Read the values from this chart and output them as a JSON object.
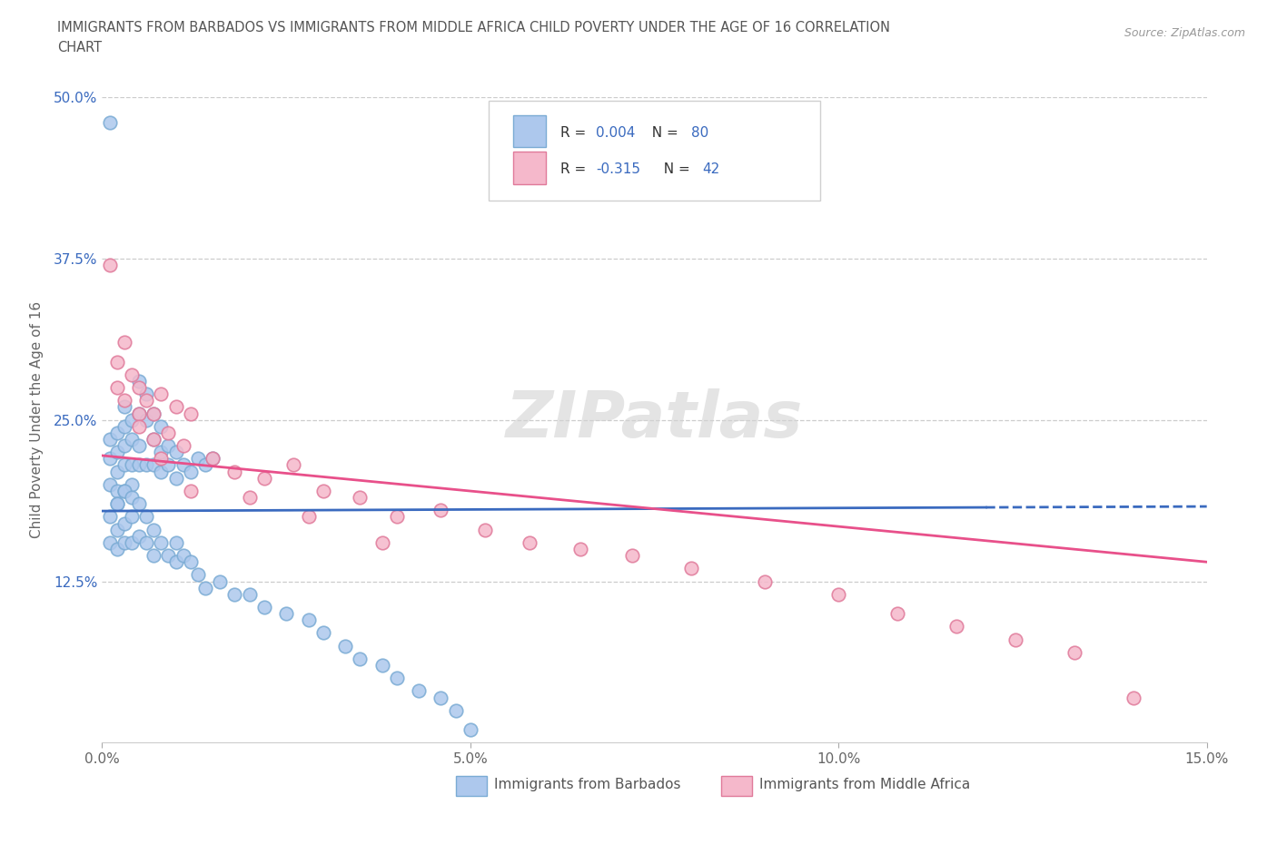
{
  "title_line1": "IMMIGRANTS FROM BARBADOS VS IMMIGRANTS FROM MIDDLE AFRICA CHILD POVERTY UNDER THE AGE OF 16 CORRELATION",
  "title_line2": "CHART",
  "source": "Source: ZipAtlas.com",
  "ylabel": "Child Poverty Under the Age of 16",
  "xlim": [
    0.0,
    0.15
  ],
  "ylim": [
    0.0,
    0.5
  ],
  "xticks": [
    0.0,
    0.05,
    0.1,
    0.15
  ],
  "xticklabels": [
    "0.0%",
    "5.0%",
    "10.0%",
    "15.0%"
  ],
  "yticks": [
    0.0,
    0.125,
    0.25,
    0.375,
    0.5
  ],
  "yticklabels": [
    "",
    "12.5%",
    "25.0%",
    "37.5%",
    "50.0%"
  ],
  "barbados_color": "#adc8ed",
  "barbados_edge": "#7aabd4",
  "middle_africa_color": "#f5b8cb",
  "middle_africa_edge": "#e07a9a",
  "trend_barbados_color": "#3a6abf",
  "trend_middle_africa_color": "#e8508a",
  "R_barbados": 0.004,
  "N_barbados": 80,
  "R_middle_africa": -0.315,
  "N_middle_africa": 42,
  "watermark": "ZIPatlas",
  "legend_label_barbados": "Immigrants from Barbados",
  "legend_label_middle": "Immigrants from Middle Africa",
  "barbados_x": [
    0.001,
    0.001,
    0.001,
    0.001,
    0.002,
    0.002,
    0.002,
    0.002,
    0.002,
    0.003,
    0.003,
    0.003,
    0.003,
    0.003,
    0.004,
    0.004,
    0.004,
    0.004,
    0.005,
    0.005,
    0.005,
    0.005,
    0.006,
    0.006,
    0.006,
    0.007,
    0.007,
    0.007,
    0.008,
    0.008,
    0.008,
    0.009,
    0.009,
    0.01,
    0.01,
    0.011,
    0.012,
    0.013,
    0.014,
    0.015,
    0.001,
    0.001,
    0.002,
    0.002,
    0.002,
    0.003,
    0.003,
    0.003,
    0.004,
    0.004,
    0.004,
    0.005,
    0.005,
    0.006,
    0.006,
    0.007,
    0.007,
    0.008,
    0.009,
    0.01,
    0.01,
    0.011,
    0.012,
    0.013,
    0.014,
    0.016,
    0.018,
    0.02,
    0.022,
    0.025,
    0.028,
    0.03,
    0.033,
    0.035,
    0.038,
    0.04,
    0.043,
    0.046,
    0.048,
    0.05
  ],
  "barbados_y": [
    0.48,
    0.235,
    0.22,
    0.2,
    0.24,
    0.225,
    0.21,
    0.195,
    0.185,
    0.26,
    0.245,
    0.23,
    0.215,
    0.195,
    0.25,
    0.235,
    0.215,
    0.2,
    0.28,
    0.255,
    0.23,
    0.215,
    0.27,
    0.25,
    0.215,
    0.255,
    0.235,
    0.215,
    0.245,
    0.225,
    0.21,
    0.23,
    0.215,
    0.225,
    0.205,
    0.215,
    0.21,
    0.22,
    0.215,
    0.22,
    0.175,
    0.155,
    0.185,
    0.165,
    0.15,
    0.195,
    0.17,
    0.155,
    0.19,
    0.175,
    0.155,
    0.185,
    0.16,
    0.175,
    0.155,
    0.165,
    0.145,
    0.155,
    0.145,
    0.155,
    0.14,
    0.145,
    0.14,
    0.13,
    0.12,
    0.125,
    0.115,
    0.115,
    0.105,
    0.1,
    0.095,
    0.085,
    0.075,
    0.065,
    0.06,
    0.05,
    0.04,
    0.035,
    0.025,
    0.01
  ],
  "middle_africa_x": [
    0.001,
    0.002,
    0.002,
    0.003,
    0.003,
    0.004,
    0.005,
    0.005,
    0.006,
    0.007,
    0.007,
    0.008,
    0.009,
    0.01,
    0.011,
    0.012,
    0.015,
    0.018,
    0.022,
    0.026,
    0.03,
    0.035,
    0.04,
    0.046,
    0.052,
    0.058,
    0.065,
    0.072,
    0.08,
    0.09,
    0.1,
    0.108,
    0.116,
    0.124,
    0.132,
    0.14,
    0.005,
    0.008,
    0.012,
    0.02,
    0.028,
    0.038
  ],
  "middle_africa_y": [
    0.37,
    0.295,
    0.275,
    0.31,
    0.265,
    0.285,
    0.275,
    0.255,
    0.265,
    0.255,
    0.235,
    0.27,
    0.24,
    0.26,
    0.23,
    0.255,
    0.22,
    0.21,
    0.205,
    0.215,
    0.195,
    0.19,
    0.175,
    0.18,
    0.165,
    0.155,
    0.15,
    0.145,
    0.135,
    0.125,
    0.115,
    0.1,
    0.09,
    0.08,
    0.07,
    0.035,
    0.245,
    0.22,
    0.195,
    0.19,
    0.175,
    0.155
  ]
}
